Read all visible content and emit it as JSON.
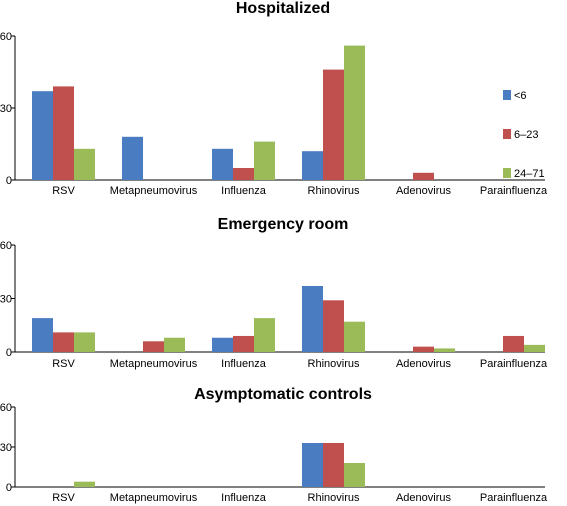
{
  "chart_data": [
    {
      "type": "bar",
      "title": "Hospitalized",
      "categories": [
        "RSV",
        "Metapneumovirus",
        "Influenza",
        "Rhinovirus",
        "Adenovirus",
        "Parainfluenza"
      ],
      "ylim": [
        0,
        60
      ],
      "yticks": [
        "0",
        "30",
        "60"
      ],
      "legend_position": "right",
      "series": [
        {
          "name": "<6",
          "color": "#4a7cc1",
          "values": [
            37,
            18,
            13,
            12,
            0,
            0
          ]
        },
        {
          "name": "6–23",
          "color": "#c0504d",
          "values": [
            39,
            0,
            5,
            46,
            3,
            0
          ]
        },
        {
          "name": "24–71",
          "color": "#9bbb59",
          "values": [
            13,
            0,
            16,
            56,
            0,
            0
          ]
        }
      ]
    },
    {
      "type": "bar",
      "title": "Emergency room",
      "categories": [
        "RSV",
        "Metapneumovirus",
        "Influenza",
        "Rhinovirus",
        "Adenovirus",
        "Parainfluenza"
      ],
      "ylim": [
        0,
        60
      ],
      "yticks": [
        "0",
        "30",
        "60"
      ],
      "series": [
        {
          "color": "#4a7cc1",
          "values": [
            19,
            0,
            8,
            37,
            0,
            0
          ]
        },
        {
          "color": "#c0504d",
          "values": [
            11,
            6,
            9,
            29,
            3,
            9
          ]
        },
        {
          "color": "#9bbb59",
          "values": [
            11,
            8,
            19,
            17,
            2,
            4
          ]
        }
      ]
    },
    {
      "type": "bar",
      "title": "Asymptomatic controls",
      "categories": [
        "RSV",
        "Metapneumovirus",
        "Influenza",
        "Rhinovirus",
        "Adenovirus",
        "Parainfluenza"
      ],
      "ylim": [
        0,
        60
      ],
      "yticks": [
        "0",
        "30",
        "60"
      ],
      "series": [
        {
          "color": "#4a7cc1",
          "values": [
            0,
            0,
            0,
            33,
            0,
            0
          ]
        },
        {
          "color": "#c0504d",
          "values": [
            0,
            0,
            0,
            33,
            0,
            0
          ]
        },
        {
          "color": "#9bbb59",
          "values": [
            4,
            0,
            0,
            18,
            0,
            0
          ]
        }
      ]
    }
  ]
}
